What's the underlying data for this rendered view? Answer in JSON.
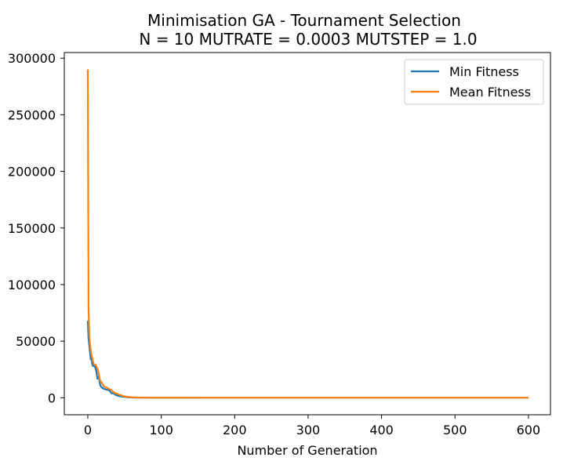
{
  "chart_data": {
    "type": "line",
    "title": "Minimisation GA - Tournament Selection",
    "subtitle": "N = 10 MUTRATE = 0.0003 MUTSTEP = 1.0",
    "xlabel": "Number of Generation",
    "ylabel": "",
    "xlim": [
      -32,
      630
    ],
    "ylim": [
      -15000,
      305000
    ],
    "xticks": [
      0,
      100,
      200,
      300,
      400,
      500,
      600
    ],
    "yticks": [
      0,
      50000,
      100000,
      150000,
      200000,
      250000,
      300000
    ],
    "legend_position": "top-right",
    "series": [
      {
        "name": "Min Fitness",
        "color": "#1f77b4",
        "x": [
          0,
          1,
          2,
          3,
          4,
          5,
          6,
          7,
          8,
          9,
          10,
          11,
          12,
          13,
          14,
          15,
          16,
          17,
          18,
          19,
          20,
          21,
          22,
          24,
          26,
          28,
          30,
          32,
          34,
          36,
          38,
          40,
          42,
          45,
          48,
          51,
          55,
          60,
          65,
          70,
          80,
          90,
          100,
          150,
          200,
          300,
          400,
          500,
          600
        ],
        "y": [
          68000,
          52000,
          46000,
          40000,
          34000,
          34000,
          30000,
          28000,
          28000,
          28000,
          27000,
          25000,
          22000,
          17000,
          17000,
          19000,
          14000,
          11000,
          10000,
          9000,
          9000,
          8000,
          8000,
          7500,
          7000,
          7000,
          6000,
          4000,
          4000,
          3500,
          2500,
          2000,
          1600,
          1200,
          900,
          700,
          400,
          250,
          150,
          100,
          60,
          40,
          30,
          20,
          15,
          10,
          10,
          10,
          10
        ]
      },
      {
        "name": "Mean Fitness",
        "color": "#ff7f0e",
        "x": [
          0,
          1,
          2,
          3,
          4,
          5,
          6,
          7,
          8,
          9,
          10,
          11,
          12,
          13,
          14,
          15,
          16,
          17,
          18,
          19,
          20,
          21,
          22,
          24,
          26,
          28,
          30,
          32,
          34,
          36,
          38,
          40,
          42,
          45,
          48,
          51,
          55,
          60,
          65,
          70,
          80,
          90,
          100,
          150,
          200,
          300,
          400,
          500,
          600
        ],
        "y": [
          290000,
          80000,
          55000,
          47000,
          42000,
          38000,
          35000,
          32000,
          30000,
          29000,
          29000,
          29000,
          27000,
          26000,
          24000,
          21000,
          17000,
          15000,
          14000,
          13500,
          12000,
          11000,
          10000,
          9500,
          9000,
          8000,
          7500,
          7000,
          5500,
          4500,
          4000,
          3500,
          3000,
          2200,
          1600,
          1100,
          700,
          450,
          300,
          200,
          120,
          80,
          60,
          40,
          30,
          20,
          20,
          20,
          20
        ]
      }
    ]
  }
}
